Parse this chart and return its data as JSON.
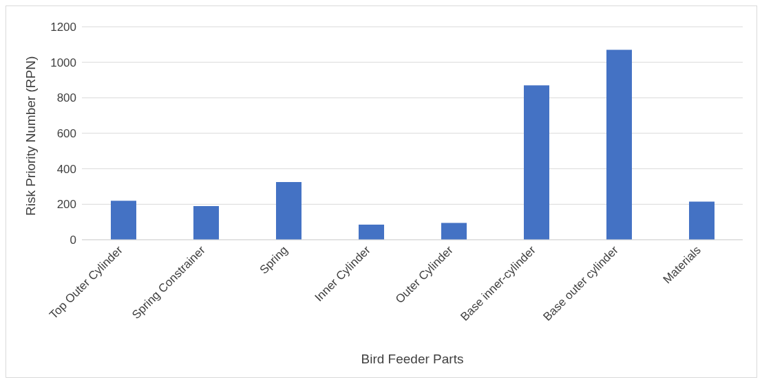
{
  "chart_data": {
    "type": "bar",
    "xlabel": "Bird Feeder Parts",
    "ylabel": "Risk Priority Number (RPN)",
    "categories": [
      "Top Outer Cylinder",
      "Spring Constrainer",
      "Spring",
      "Inner Cylinder",
      "Outer Cylinder",
      "Base inner-cylinder",
      "Base outer cylinder",
      "Materials"
    ],
    "values": [
      220,
      190,
      325,
      85,
      95,
      870,
      1070,
      215
    ],
    "color": "#4472c4",
    "ylim": [
      0,
      1200
    ],
    "yticks": [
      0,
      200,
      400,
      600,
      800,
      1000,
      1200
    ],
    "grid": "y",
    "legend": false
  }
}
